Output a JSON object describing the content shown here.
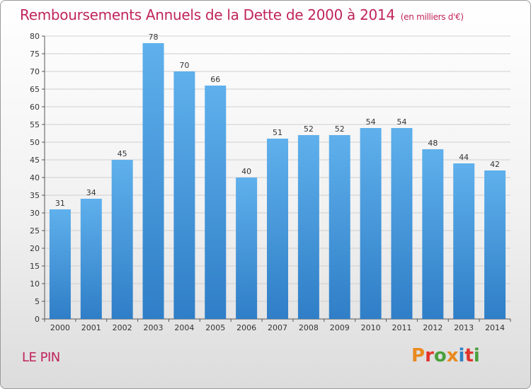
{
  "header": {
    "title": "Remboursements Annuels de la Dette de 2000 à 2014",
    "subtitle": "(en milliers d'€)"
  },
  "footer": {
    "commune": "LE PIN",
    "logo_text": "Proxiti"
  },
  "colors": {
    "title": "#c0245c",
    "bar_top": "#5fb0ec",
    "bar_bottom": "#2f7ec7",
    "grid": "#cfcfcf",
    "logo_letters": [
      "#e98a1f",
      "#e2352b",
      "#4aa03c",
      "#e98a1f",
      "#2d83c5",
      "#e2352b",
      "#4aa03c"
    ]
  },
  "chart_data": {
    "type": "bar",
    "title": "Remboursements Annuels de la Dette de 2000 à 2014",
    "subtitle": "(en milliers d'€)",
    "xlabel": "",
    "ylabel": "",
    "categories": [
      "2000",
      "2001",
      "2002",
      "2003",
      "2004",
      "2005",
      "2006",
      "2007",
      "2008",
      "2009",
      "2010",
      "2011",
      "2012",
      "2013",
      "2014"
    ],
    "values": [
      31,
      34,
      45,
      78,
      70,
      66,
      40,
      51,
      52,
      52,
      54,
      54,
      48,
      44,
      42
    ],
    "ylim": [
      0,
      80
    ],
    "yticks": [
      0,
      5,
      10,
      15,
      20,
      25,
      30,
      35,
      40,
      45,
      50,
      55,
      60,
      65,
      70,
      75,
      80
    ],
    "grid": true,
    "data_labels": true,
    "legend": "none"
  }
}
